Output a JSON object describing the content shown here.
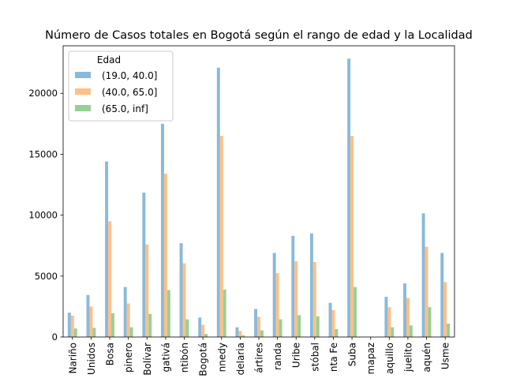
{
  "chart_data": {
    "type": "bar",
    "title": "Número de Casos totales en Bogotá según el rango de edad y la Localidad",
    "xlabel": "",
    "ylabel": "",
    "ylim": [
      0,
      23900
    ],
    "yticks": [
      0,
      5000,
      10000,
      15000,
      20000
    ],
    "grid": false,
    "legend": {
      "title": "Edad",
      "placement": "top-left"
    },
    "categories": [
      "Antonio Nariño",
      "Barrios Unidos",
      "Bosa",
      "Chapinero",
      "Ciudad Bolívar",
      "Engativá",
      "Fontibón",
      "Fuera de Bogotá",
      "Kennedy",
      "La Candelaria",
      "Los Mártires",
      "Puente Aranda",
      "Rafael Uribe Uribe",
      "San Cristóbal",
      "Santa Fe",
      "Suba",
      "Sumapaz",
      "Teusaquillo",
      "Tunjuelito",
      "Usaquén",
      "Usme"
    ],
    "tick_labels": [
      "Nariño",
      "Unidos",
      "Bosa",
      "pinero",
      "Bolívar",
      "gativá",
      "ntibón",
      "Bogotá",
      "nnedy",
      "delaria",
      "ártires",
      "randa",
      "Uribe",
      "stóbal",
      "nta Fe",
      "Suba",
      "mapaz",
      "aquillo",
      "juelito",
      "aquén",
      "Usme"
    ],
    "series": [
      {
        "name": "(19.0, 40.0]",
        "color": "#8ab9db",
        "values": [
          2000,
          3450,
          14400,
          4100,
          11850,
          17500,
          7700,
          1600,
          22100,
          800,
          2300,
          6900,
          8300,
          8500,
          2800,
          22850,
          0,
          3300,
          4400,
          10150,
          6900
        ]
      },
      {
        "name": "(40.0, 65.0]",
        "color": "#ffbf86",
        "values": [
          1750,
          2500,
          9500,
          2750,
          7600,
          13400,
          6050,
          1000,
          16500,
          500,
          1650,
          5250,
          6200,
          6150,
          2200,
          16500,
          0,
          2450,
          3200,
          7400,
          4500
        ]
      },
      {
        "name": "(65.0, inf]",
        "color": "#96d096",
        "values": [
          700,
          750,
          1950,
          800,
          1900,
          3850,
          1450,
          250,
          3900,
          150,
          550,
          1450,
          1800,
          1700,
          650,
          4100,
          0,
          800,
          950,
          2450,
          1100
        ]
      }
    ]
  }
}
